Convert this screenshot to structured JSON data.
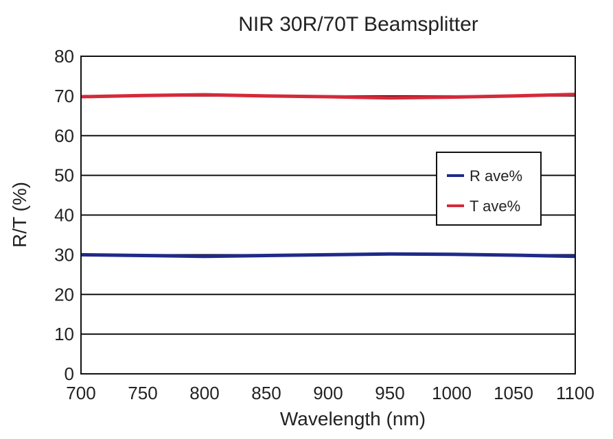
{
  "chart_data": {
    "type": "line",
    "title": "NIR 30R/70T Beamsplitter",
    "xlabel": "Wavelength (nm)",
    "ylabel": "R/T (%)",
    "xlim": [
      700,
      1100
    ],
    "ylim": [
      0,
      80
    ],
    "xticks": [
      700,
      750,
      800,
      850,
      900,
      950,
      1000,
      1050,
      1100
    ],
    "yticks": [
      0,
      10,
      20,
      30,
      40,
      50,
      60,
      70,
      80
    ],
    "grid": "horizontal",
    "legend_position": "right",
    "series": [
      {
        "name": "R ave%",
        "color": "#1f2a8a",
        "x": [
          700,
          750,
          800,
          850,
          900,
          950,
          1000,
          1050,
          1100
        ],
        "y": [
          30.0,
          29.8,
          29.6,
          29.8,
          30.0,
          30.2,
          30.1,
          29.9,
          29.6
        ]
      },
      {
        "name": "T ave%",
        "color": "#d42a3a",
        "x": [
          700,
          750,
          800,
          850,
          900,
          950,
          1000,
          1050,
          1100
        ],
        "y": [
          69.8,
          70.1,
          70.3,
          70.0,
          69.8,
          69.5,
          69.7,
          70.0,
          70.4
        ]
      }
    ]
  }
}
